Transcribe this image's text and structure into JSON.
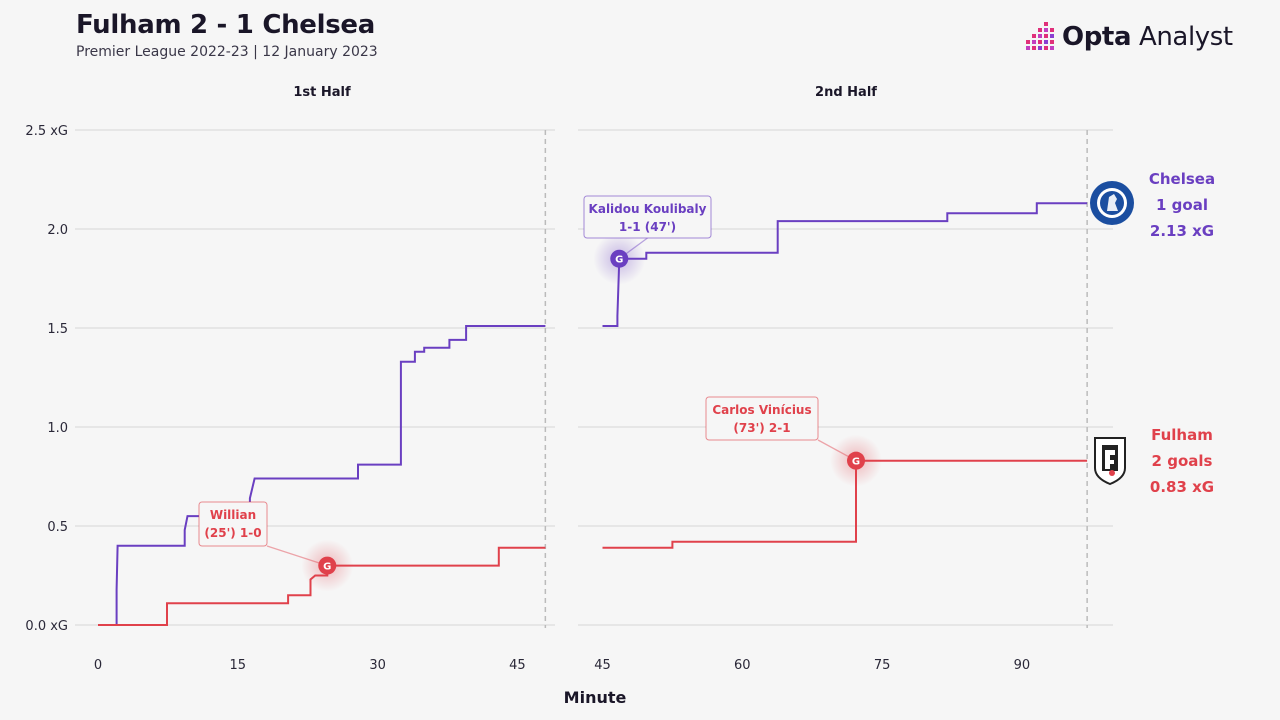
{
  "header": {
    "title": "Fulham 2 - 1 Chelsea",
    "subtitle": "Premier League 2022-23 | 12 January 2023",
    "brand_bold": "Opta",
    "brand_light": " Analyst"
  },
  "colors": {
    "chelsea": "#6a3fc1",
    "fulham": "#e0414b",
    "background": "#f6f6f6",
    "grid": "#dddddd",
    "text": "#1a1628"
  },
  "chart_data": {
    "type": "line",
    "step": true,
    "title": "Fulham 2 - 1 Chelsea",
    "subtitle": "Premier League 2022-23 | 12 January 2023",
    "xlabel": "Minute",
    "panels": [
      {
        "name": "1st Half",
        "xlim": [
          0,
          48
        ],
        "xticks": [
          "0",
          "15",
          "30",
          "45"
        ],
        "end_marker": 48
      },
      {
        "name": "2nd Half",
        "xlim": [
          45,
          98
        ],
        "xticks": [
          "45",
          "60",
          "75",
          "90"
        ],
        "end_marker": 97
      }
    ],
    "ylim": [
      0,
      2.5
    ],
    "yticks": [
      "0.0 xG",
      "0.5",
      "1.0",
      "1.5",
      "2.0",
      "2.5 xG"
    ],
    "grid": true,
    "series": [
      {
        "name": "Chelsea",
        "color": "#6a3fc1",
        "goals_text": "1 goal",
        "xg_text": "2.13 xG",
        "half1": [
          [
            0,
            0
          ],
          [
            2,
            0
          ],
          [
            2,
            0.18
          ],
          [
            2.1,
            0.4
          ],
          [
            9.3,
            0.4
          ],
          [
            9.3,
            0.48
          ],
          [
            9.6,
            0.55
          ],
          [
            16.3,
            0.55
          ],
          [
            16.3,
            0.64
          ],
          [
            16.8,
            0.74
          ],
          [
            27.9,
            0.74
          ],
          [
            27.9,
            0.81
          ],
          [
            32.5,
            0.81
          ],
          [
            32.5,
            1.33
          ],
          [
            34,
            1.33
          ],
          [
            34,
            1.38
          ],
          [
            35,
            1.38
          ],
          [
            35,
            1.4
          ],
          [
            37.7,
            1.4
          ],
          [
            37.7,
            1.44
          ],
          [
            39.5,
            1.44
          ],
          [
            39.5,
            1.51
          ],
          [
            48,
            1.51
          ]
        ],
        "half2": [
          [
            45,
            1.51
          ],
          [
            46.6,
            1.51
          ],
          [
            46.6,
            1.56
          ],
          [
            46.8,
            1.85
          ],
          [
            49.7,
            1.85
          ],
          [
            49.7,
            1.88
          ],
          [
            63.8,
            1.88
          ],
          [
            63.8,
            2.04
          ],
          [
            82,
            2.04
          ],
          [
            82,
            2.08
          ],
          [
            91.6,
            2.08
          ],
          [
            91.6,
            2.13
          ],
          [
            97,
            2.13
          ]
        ]
      },
      {
        "name": "Fulham",
        "color": "#e0414b",
        "goals_text": "2 goals",
        "xg_text": "0.83 xG",
        "half1": [
          [
            0,
            0
          ],
          [
            7.4,
            0
          ],
          [
            7.4,
            0.11
          ],
          [
            20.4,
            0.11
          ],
          [
            20.4,
            0.15
          ],
          [
            22.8,
            0.15
          ],
          [
            22.8,
            0.23
          ],
          [
            23.3,
            0.25
          ],
          [
            24.6,
            0.25
          ],
          [
            24.6,
            0.3
          ],
          [
            43,
            0.3
          ],
          [
            43,
            0.39
          ],
          [
            48,
            0.39
          ]
        ],
        "half2": [
          [
            45,
            0.39
          ],
          [
            52.5,
            0.39
          ],
          [
            52.5,
            0.42
          ],
          [
            72.2,
            0.42
          ],
          [
            72.2,
            0.83
          ],
          [
            97,
            0.83
          ]
        ]
      }
    ],
    "goals": [
      {
        "team": "Fulham",
        "half": 1,
        "minute": 24.6,
        "xg": 0.3,
        "label_line1": "Willian",
        "label_line2": "(25') 1-0",
        "marker": "G"
      },
      {
        "team": "Chelsea",
        "half": 2,
        "minute": 46.8,
        "xg": 1.85,
        "label_line1": "Kalidou Koulibaly",
        "label_line2": "1-1 (47')",
        "marker": "G"
      },
      {
        "team": "Fulham",
        "half": 2,
        "minute": 72.2,
        "xg": 0.83,
        "label_line1": "Carlos Vinícius",
        "label_line2": "(73') 2-1",
        "marker": "G"
      }
    ]
  }
}
